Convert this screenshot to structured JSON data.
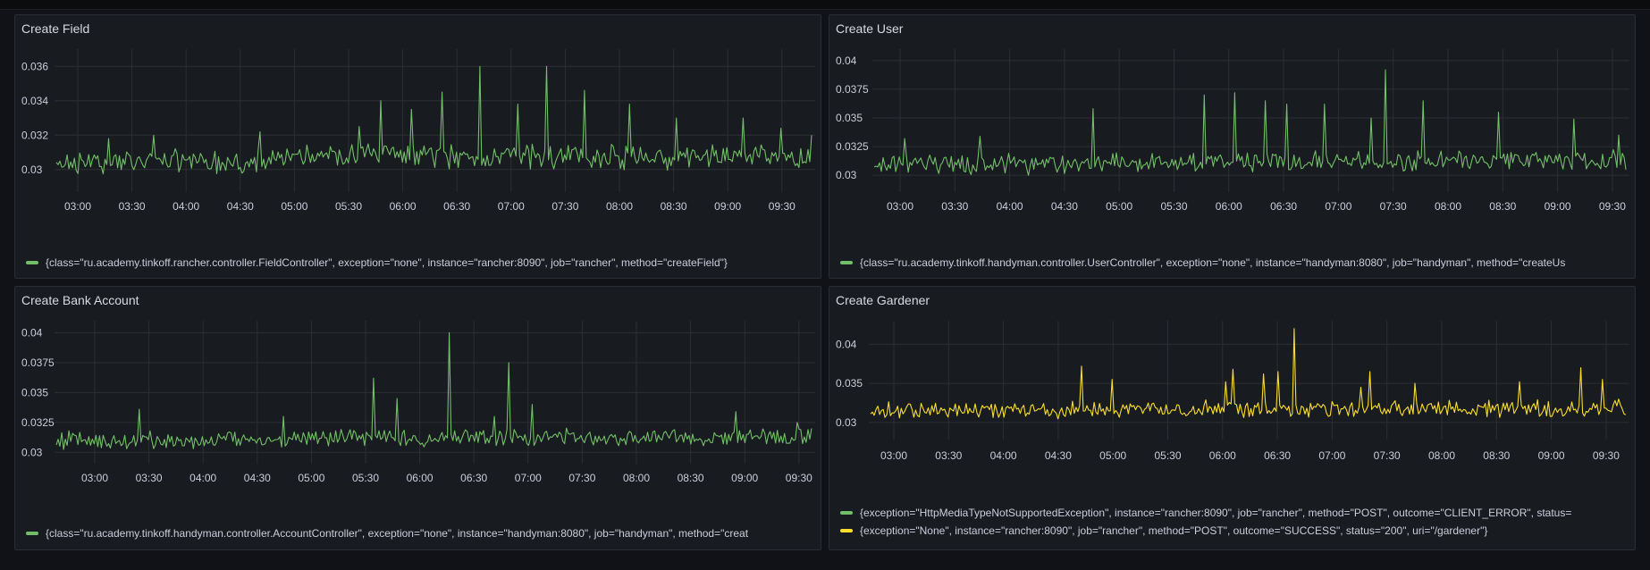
{
  "colors": {
    "background": "#111217",
    "panel": "#181b1f",
    "grid": "#2c2f35",
    "green": "#73bf69",
    "yellow": "#fade2a",
    "text": "#ccccdc"
  },
  "panels": [
    {
      "title": "Create Field",
      "chart_data": {
        "type": "line",
        "title": "Create Field",
        "x": [
          "03:00",
          "03:30",
          "04:00",
          "04:30",
          "05:00",
          "05:30",
          "06:00",
          "06:30",
          "07:00",
          "07:30",
          "08:00",
          "08:30",
          "09:00",
          "09:30"
        ],
        "ylim": [
          0.029,
          0.037
        ],
        "yticks": [
          "0.036",
          "0.034",
          "0.032",
          "0.03"
        ],
        "series": [
          {
            "name": "{class=\"ru.academy.tinkoff.rancher.controller.FieldController\", exception=\"none\", instance=\"rancher:8090\", job=\"rancher\", method=\"createField\"}",
            "color": "green",
            "baseline": 0.0305,
            "noise": 0.0012,
            "spikes": [
              [
                0.07,
                0.0318
              ],
              [
                0.13,
                0.032
              ],
              [
                0.27,
                0.0322
              ],
              [
                0.4,
                0.0325
              ],
              [
                0.43,
                0.034
              ],
              [
                0.47,
                0.0335
              ],
              [
                0.51,
                0.0345
              ],
              [
                0.56,
                0.036
              ],
              [
                0.61,
                0.0338
              ],
              [
                0.65,
                0.036
              ],
              [
                0.7,
                0.0346
              ],
              [
                0.76,
                0.0338
              ],
              [
                0.82,
                0.033
              ],
              [
                0.91,
                0.033
              ],
              [
                0.96,
                0.0324
              ]
            ],
            "end": 0.032
          }
        ]
      },
      "legend": [
        {
          "text": "{class=\"ru.academy.tinkoff.rancher.controller.FieldController\", exception=\"none\", instance=\"rancher:8090\", job=\"rancher\", method=\"createField\"}",
          "color": "green"
        }
      ]
    },
    {
      "title": "Create User",
      "chart_data": {
        "type": "line",
        "title": "Create User",
        "x": [
          "03:00",
          "03:30",
          "04:00",
          "04:30",
          "05:00",
          "05:30",
          "06:00",
          "06:30",
          "07:00",
          "07:30",
          "08:00",
          "08:30",
          "09:00",
          "09:30"
        ],
        "ylim": [
          0.029,
          0.041
        ],
        "yticks": [
          "0.04",
          "0.0375",
          "0.035",
          "0.0325",
          "0.03"
        ],
        "series": [
          {
            "name": "{class=\"ru.academy.tinkoff.handyman.controller.UserController\", exception=\"none\", instance=\"handyman:8080\", job=\"handyman\", method=\"createUser\"}",
            "color": "green",
            "baseline": 0.031,
            "noise": 0.0015,
            "spikes": [
              [
                0.04,
                0.0332
              ],
              [
                0.14,
                0.0334
              ],
              [
                0.29,
                0.0358
              ],
              [
                0.44,
                0.037
              ],
              [
                0.48,
                0.0372
              ],
              [
                0.52,
                0.0365
              ],
              [
                0.55,
                0.0362
              ],
              [
                0.6,
                0.0362
              ],
              [
                0.66,
                0.035
              ],
              [
                0.68,
                0.0392
              ],
              [
                0.73,
                0.0365
              ],
              [
                0.83,
                0.0355
              ],
              [
                0.93,
                0.0349
              ],
              [
                0.99,
                0.0335
              ]
            ],
            "end": 0.0305
          }
        ]
      },
      "legend": [
        {
          "text": "{class=\"ru.academy.tinkoff.handyman.controller.UserController\", exception=\"none\", instance=\"handyman:8080\", job=\"handyman\", method=\"createUs",
          "color": "green"
        }
      ]
    },
    {
      "title": "Create Bank Account",
      "chart_data": {
        "type": "line",
        "title": "Create Bank Account",
        "x": [
          "03:00",
          "03:30",
          "04:00",
          "04:30",
          "05:00",
          "05:30",
          "06:00",
          "06:30",
          "07:00",
          "07:30",
          "08:00",
          "08:30",
          "09:00",
          "09:30"
        ],
        "ylim": [
          0.0295,
          0.041
        ],
        "yticks": [
          "0.04",
          "0.0375",
          "0.035",
          "0.0325",
          "0.03"
        ],
        "series": [
          {
            "name": "{class=\"ru.academy.tinkoff.handyman.controller.AccountController\", exception=\"none\", instance=\"handyman:8080\", job=\"handyman\", method=\"createAccount\"}",
            "color": "green",
            "baseline": 0.031,
            "noise": 0.0012,
            "spikes": [
              [
                0.11,
                0.0336
              ],
              [
                0.3,
                0.033
              ],
              [
                0.42,
                0.0362
              ],
              [
                0.45,
                0.0345
              ],
              [
                0.52,
                0.04
              ],
              [
                0.58,
                0.033
              ],
              [
                0.6,
                0.0375
              ],
              [
                0.63,
                0.034
              ],
              [
                0.9,
                0.0334
              ],
              [
                0.98,
                0.0325
              ]
            ],
            "end": 0.032
          }
        ]
      },
      "legend": [
        {
          "text": "{class=\"ru.academy.tinkoff.handyman.controller.AccountController\", exception=\"none\", instance=\"handyman:8080\", job=\"handyman\", method=\"creat",
          "color": "green"
        }
      ]
    },
    {
      "title": "Create Gardener",
      "chart_data": {
        "type": "line",
        "title": "Create Gardener",
        "x": [
          "03:00",
          "03:30",
          "04:00",
          "04:30",
          "05:00",
          "05:30",
          "06:00",
          "06:30",
          "07:00",
          "07:30",
          "08:00",
          "08:30",
          "09:00",
          "09:30"
        ],
        "ylim": [
          0.0285,
          0.043
        ],
        "yticks": [
          "0.04",
          "0.035",
          "0.03"
        ],
        "series": [
          {
            "name": "{exception=\"HttpMediaTypeNotSupportedException\", instance=\"rancher:8090\", job=\"rancher\", method=\"POST\", outcome=\"CLIENT_ERROR\", status=",
            "color": "green",
            "flat": true
          },
          {
            "name": "{exception=\"None\", instance=\"rancher:8090\", job=\"rancher\", method=\"POST\", outcome=\"SUCCESS\", status=\"200\", uri=\"/gardener\"}",
            "color": "yellow",
            "baseline": 0.0315,
            "noise": 0.0018,
            "spikes": [
              [
                0.28,
                0.0372
              ],
              [
                0.32,
                0.0355
              ],
              [
                0.47,
                0.0352
              ],
              [
                0.48,
                0.0368
              ],
              [
                0.52,
                0.0362
              ],
              [
                0.54,
                0.0365
              ],
              [
                0.56,
                0.042
              ],
              [
                0.65,
                0.0345
              ],
              [
                0.66,
                0.0365
              ],
              [
                0.72,
                0.035
              ],
              [
                0.86,
                0.0352
              ],
              [
                0.94,
                0.037
              ],
              [
                0.97,
                0.0355
              ]
            ],
            "end": 0.031
          }
        ]
      },
      "legend": [
        {
          "text": "{exception=\"HttpMediaTypeNotSupportedException\", instance=\"rancher:8090\", job=\"rancher\", method=\"POST\", outcome=\"CLIENT_ERROR\", status=",
          "color": "green"
        },
        {
          "text": "{exception=\"None\", instance=\"rancher:8090\", job=\"rancher\", method=\"POST\", outcome=\"SUCCESS\", status=\"200\", uri=\"/gardener\"}",
          "color": "yellow"
        }
      ]
    }
  ]
}
